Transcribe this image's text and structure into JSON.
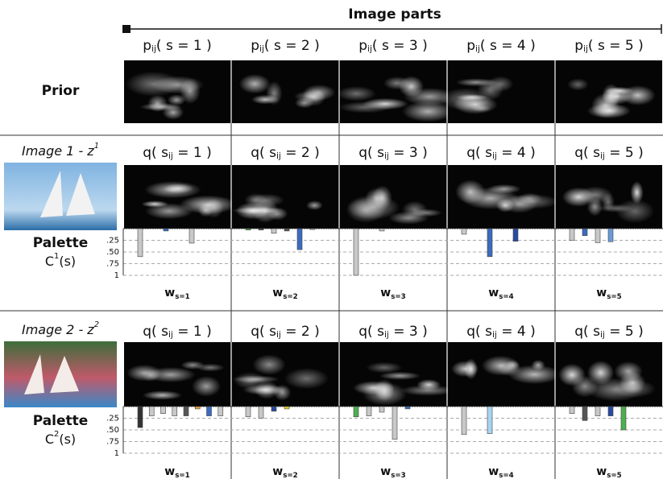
{
  "header": "Image parts",
  "prior": {
    "label": "Prior",
    "columns": [
      {
        "main": "p",
        "sub": "ij",
        "tail": "( s = 1 )"
      },
      {
        "main": "p",
        "sub": "ij",
        "tail": "( s = 2 )"
      },
      {
        "main": "p",
        "sub": "ij",
        "tail": "( s = 3 )"
      },
      {
        "main": "p",
        "sub": "ij",
        "tail": "( s = 4 )"
      },
      {
        "main": "p",
        "sub": "ij",
        "tail": "( s = 5 )"
      }
    ]
  },
  "palette_ticks": [
    {
      "value": 0.25,
      "label": ".25"
    },
    {
      "value": 0.5,
      "label": ".50"
    },
    {
      "value": 0.75,
      "label": ".75"
    },
    1
  ],
  "images": [
    {
      "title": {
        "main": "Image 1 - z",
        "sup": "1"
      },
      "palette_label": "Palette",
      "palette_symbol": {
        "main": "C",
        "sup": "1",
        "tail": "(s)"
      },
      "columns": [
        {
          "label": {
            "main": "q( s",
            "sub": "ij",
            "tail": " = 1 )"
          },
          "weight": {
            "main": "w",
            "sub": "s=1"
          },
          "values": [
            0.6,
            0.05,
            0.31
          ],
          "colors": [
            "#c8c8c8",
            "#3a6bc0",
            "#c8c8c8"
          ]
        },
        {
          "label": {
            "main": "q( s",
            "sub": "ij",
            "tail": " = 2 )"
          },
          "weight": {
            "main": "w",
            "sub": "s=2"
          },
          "values": [
            0.03,
            0.03,
            0.1,
            0.05,
            0.45,
            0.02
          ],
          "colors": [
            "#4caf50",
            "#555555",
            "#c8c8c8",
            "#555555",
            "#3a6bc0",
            "#c8c8c8"
          ]
        },
        {
          "label": {
            "main": "q( s",
            "sub": "ij",
            "tail": " = 3 )"
          },
          "weight": {
            "main": "w",
            "sub": "s=3"
          },
          "values": [
            1.0,
            0.05
          ],
          "colors": [
            "#c8c8c8",
            "#c8c8c8"
          ]
        },
        {
          "label": {
            "main": "q( s",
            "sub": "ij",
            "tail": " = 4 )"
          },
          "weight": {
            "main": "w",
            "sub": "s=4"
          },
          "values": [
            0.12,
            0.6,
            0.27
          ],
          "colors": [
            "#c8c8c8",
            "#3a6bc0",
            "#2a4aa0"
          ]
        },
        {
          "label": {
            "main": "q( s",
            "sub": "ij",
            "tail": " = 5 )"
          },
          "weight": {
            "main": "w",
            "sub": "s=5"
          },
          "values": [
            0.25,
            0.15,
            0.3,
            0.28
          ],
          "colors": [
            "#c8c8c8",
            "#3a6bc0",
            "#c8c8c8",
            "#6a9ad8"
          ]
        }
      ]
    },
    {
      "title": {
        "main": "Image 2 - z",
        "sup": "2"
      },
      "palette_label": "Palette",
      "palette_symbol": {
        "main": "C",
        "sup": "2",
        "tail": "(s)"
      },
      "columns": [
        {
          "label": {
            "main": "q( s",
            "sub": "ij",
            "tail": " = 1 )"
          },
          "weight": {
            "main": "w",
            "sub": "s=1"
          },
          "values": [
            0.45,
            0.2,
            0.15,
            0.2,
            0.2,
            0.05,
            0.2,
            0.2
          ],
          "colors": [
            "#333333",
            "#c8c8c8",
            "#c8c8c8",
            "#c8c8c8",
            "#555555",
            "#f0a030",
            "#3a6bc0",
            "#c8c8c8"
          ]
        },
        {
          "label": {
            "main": "q( s",
            "sub": "ij",
            "tail": " = 2 )"
          },
          "weight": {
            "main": "w",
            "sub": "s=2"
          },
          "values": [
            0.22,
            0.25,
            0.1,
            0.05
          ],
          "colors": [
            "#c8c8c8",
            "#c8c8c8",
            "#2a4aa0",
            "#e8d020"
          ]
        },
        {
          "label": {
            "main": "q( s",
            "sub": "ij",
            "tail": " = 3 )"
          },
          "weight": {
            "main": "w",
            "sub": "s=3"
          },
          "values": [
            0.22,
            0.2,
            0.12,
            0.7,
            0.05
          ],
          "colors": [
            "#4caf50",
            "#c8c8c8",
            "#c8c8c8",
            "#c8c8c8",
            "#3a6bc0"
          ]
        },
        {
          "label": {
            "main": "q( s",
            "sub": "ij",
            "tail": " = 4 )"
          },
          "weight": {
            "main": "w",
            "sub": "s=4"
          },
          "values": [
            0.6,
            0.58
          ],
          "colors": [
            "#c8c8c8",
            "#a8d4f0"
          ]
        },
        {
          "label": {
            "main": "q( s",
            "sub": "ij",
            "tail": " = 5 )"
          },
          "weight": {
            "main": "w",
            "sub": "s=5"
          },
          "values": [
            0.15,
            0.3,
            0.2,
            0.2,
            0.5
          ],
          "colors": [
            "#c8c8c8",
            "#555555",
            "#c8c8c8",
            "#2a4aa0",
            "#4caf50"
          ]
        }
      ]
    }
  ]
}
